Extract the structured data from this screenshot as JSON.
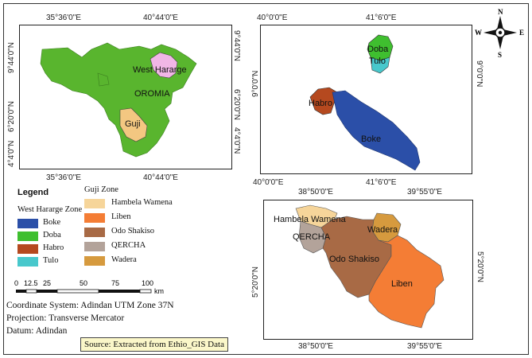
{
  "colors": {
    "boke": "#2b4fa8",
    "doba": "#3fbf2f",
    "habro": "#b5491f",
    "tulo": "#48c8cc",
    "hambela": "#f6d59a",
    "liben": "#f47d35",
    "odo_shakiso": "#a86a45",
    "qercha": "#b3a39a",
    "wadera": "#d69a3e",
    "oromia": "#59b52e",
    "west_hararge": "#f1b6e6",
    "guji": "#f3c781",
    "source_bg": "#fbf7c9"
  },
  "map_main": {
    "top_ticks": [
      "35°36'0\"E",
      "40°44'0\"E"
    ],
    "bottom_ticks": [
      "35°36'0\"E",
      "40°44'0\"E"
    ],
    "left_ticks": [
      "9°44'0\"N",
      "6°20'0\"N",
      "4°4'0\"N"
    ],
    "right_ticks": [
      "9°44'0\"N",
      "6°20'0\"N",
      "4°4'0\"N"
    ],
    "labels": {
      "west_hararge": "West Hararge",
      "oromia": "OROMIA",
      "guji": "Guji"
    }
  },
  "map_west_hararge": {
    "top_ticks": [
      "40°0'0\"E",
      "41°6'0\"E"
    ],
    "bottom_ticks": [
      "40°0'0\"E",
      "41°6'0\"E"
    ],
    "left_ticks": [
      "9°0'0\"N"
    ],
    "right_ticks": [
      "9°0'0\"N"
    ],
    "labels": {
      "doba": "Doba",
      "tulo": "Tulo",
      "habro": "Habro",
      "boke": "Boke"
    }
  },
  "map_guji": {
    "top_ticks": [
      "38°50'0\"E",
      "39°55'0\"E"
    ],
    "bottom_ticks": [
      "38°50'0\"E",
      "39°55'0\"E"
    ],
    "left_ticks": [
      "5°20'0\"N"
    ],
    "right_ticks": [
      "5°20'0\"N"
    ],
    "labels": {
      "hambela": "Hambela Wamena",
      "qercha": "QERCHA",
      "wadera": "Wadera",
      "odo_shakiso": "Odo Shakiso",
      "liben": "Liben"
    }
  },
  "north_arrow": {
    "n": "N",
    "s": "S",
    "e": "E",
    "w": "W"
  },
  "legend": {
    "title": "Legend",
    "west_hararge_zone": {
      "title": "West Hararge Zone",
      "items": [
        "Boke",
        "Doba",
        "Habro",
        "Tulo"
      ]
    },
    "guji_zone": {
      "title": "Guji Zone",
      "items": [
        "Hambela Wamena",
        "Liben",
        "Odo Shakiso",
        "QERCHA",
        "Wadera"
      ]
    }
  },
  "scale_bar": {
    "ticks": [
      "0",
      "12.5",
      "25",
      "50",
      "75",
      "100"
    ],
    "unit": "km"
  },
  "info": {
    "coordinate_system": "Coordinate System: Adindan UTM Zone 37N",
    "projection": "Projection: Transverse Mercator",
    "datum": "Datum: Adindan"
  },
  "source": "Source: Extracted from Ethio_GIS Data"
}
